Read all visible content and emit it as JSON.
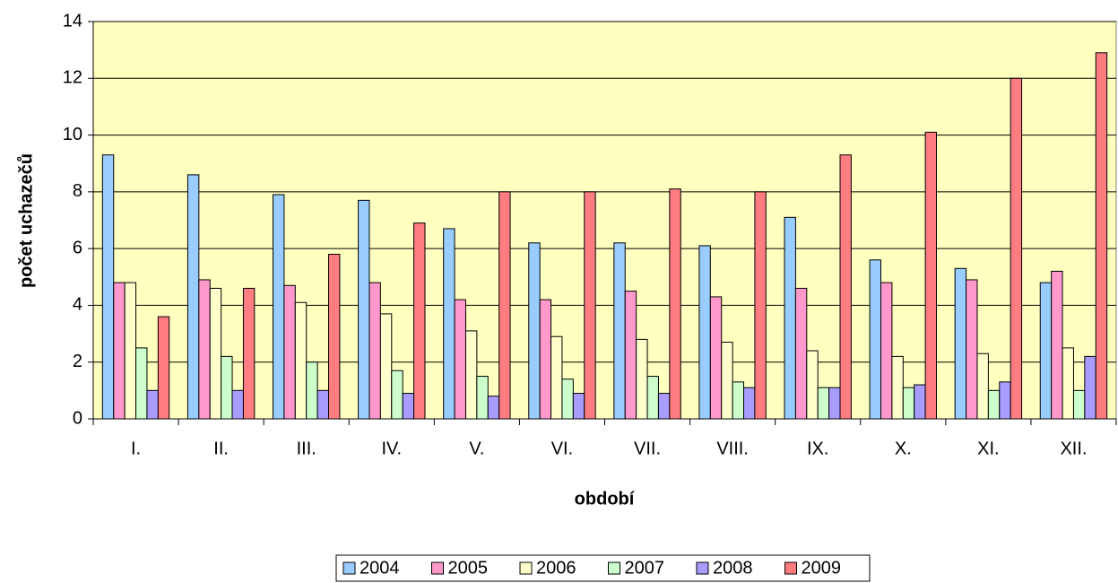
{
  "chart_data": {
    "type": "bar",
    "x_label": "období",
    "y_label": "počet uchazečů",
    "categories": [
      "I.",
      "II.",
      "III.",
      "IV.",
      "V.",
      "VI.",
      "VII.",
      "VIII.",
      "IX.",
      "X.",
      "XI.",
      "XII."
    ],
    "series": [
      {
        "name": "2004",
        "color": "#99ccff",
        "values": [
          9.3,
          8.6,
          7.9,
          7.7,
          6.7,
          6.2,
          6.2,
          6.1,
          7.1,
          5.6,
          5.3,
          4.8
        ]
      },
      {
        "name": "2005",
        "color": "#ff99cc",
        "values": [
          4.8,
          4.9,
          4.7,
          4.8,
          4.2,
          4.2,
          4.5,
          4.3,
          4.6,
          4.8,
          4.9,
          5.2
        ]
      },
      {
        "name": "2006",
        "color": "#ffffcc",
        "values": [
          4.8,
          4.6,
          4.1,
          3.7,
          3.1,
          2.9,
          2.8,
          2.7,
          2.4,
          2.2,
          2.3,
          2.5
        ]
      },
      {
        "name": "2007",
        "color": "#ccffcc",
        "values": [
          2.5,
          2.2,
          2.0,
          1.7,
          1.5,
          1.4,
          1.5,
          1.3,
          1.1,
          1.1,
          1.0,
          1.0
        ]
      },
      {
        "name": "2008",
        "color": "#a99cff",
        "values": [
          1.0,
          1.0,
          1.0,
          0.9,
          0.8,
          0.9,
          0.9,
          1.1,
          1.1,
          1.2,
          1.3,
          2.2
        ]
      },
      {
        "name": "2009",
        "color": "#ff7c80",
        "values": [
          3.6,
          4.6,
          5.8,
          6.9,
          8.0,
          8.0,
          8.1,
          8.0,
          9.3,
          10.1,
          12.0,
          12.9
        ]
      }
    ],
    "ylim": [
      0,
      14
    ],
    "yticks": [
      0,
      2,
      4,
      6,
      8,
      10,
      12,
      14
    ],
    "grid": true,
    "legend": "bottom"
  }
}
